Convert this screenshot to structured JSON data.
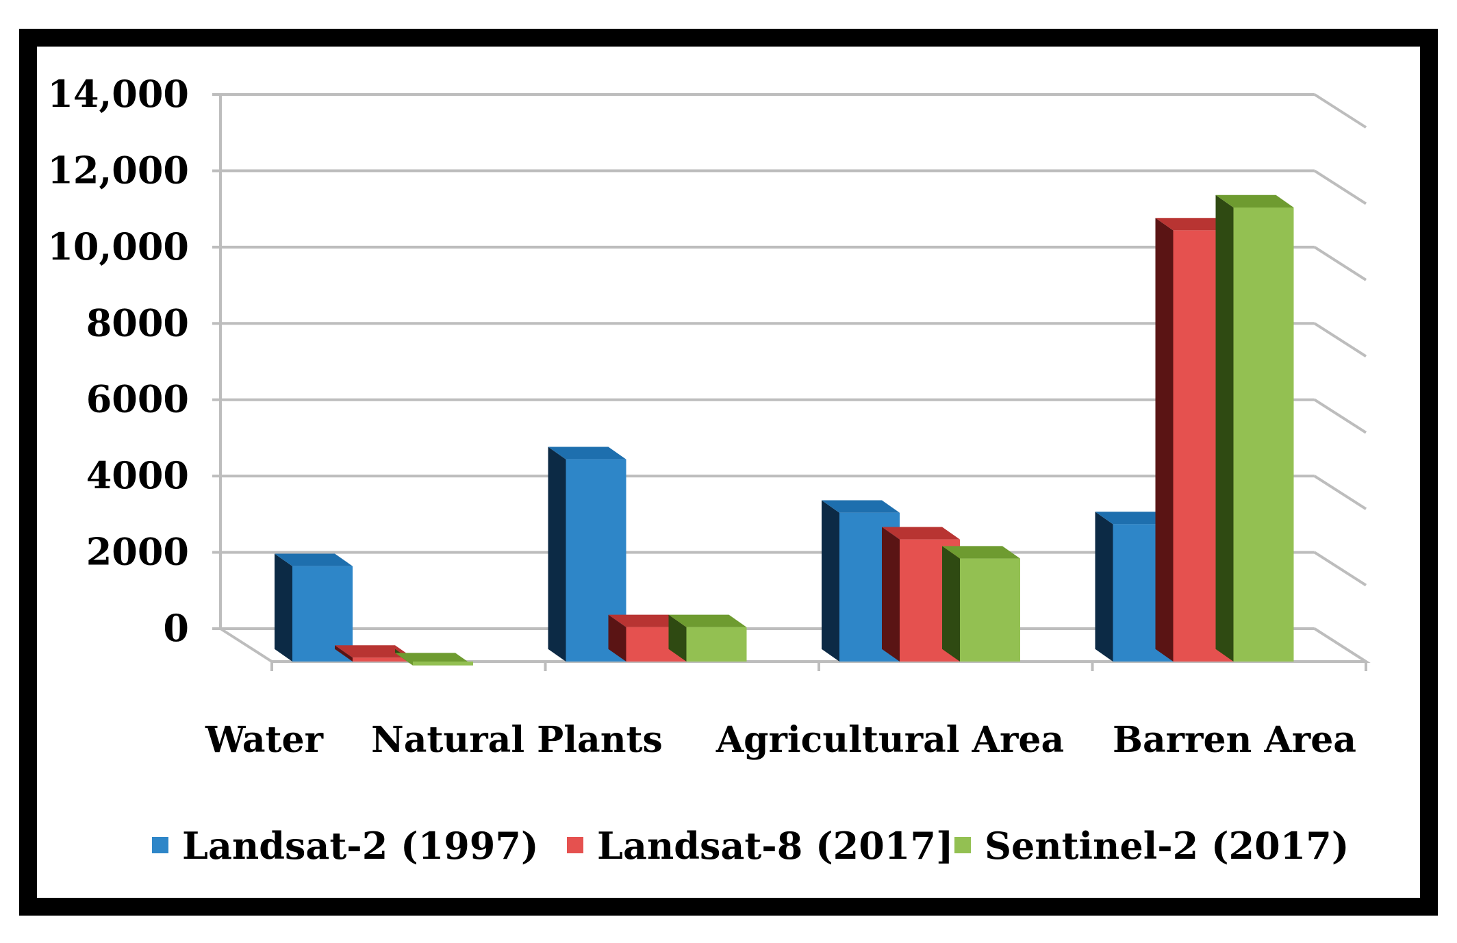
{
  "chart_data": {
    "type": "bar",
    "categories": [
      "Water",
      "Natural Plants",
      "Agricultural Area",
      "Barren Area"
    ],
    "series": [
      {
        "name": "Landsat-2 (1997)",
        "values": [
          2500,
          5300,
          3900,
          3600
        ],
        "color": "#2E86C8",
        "side": "#0C2A45",
        "top": "#1E6FAE"
      },
      {
        "name": "Landsat-8 (2017]",
        "values": [
          100,
          900,
          3200,
          11300
        ],
        "color": "#E5514F",
        "side": "#5A1414",
        "top": "#B83432"
      },
      {
        "name": "Sentinel-2 (2017)",
        "values": [
          -100,
          900,
          2700,
          11900
        ],
        "color": "#93C052",
        "side": "#2F4A12",
        "top": "#6E9B30"
      }
    ],
    "yticks": [
      "0",
      "2000",
      "4000",
      "6000",
      "8000",
      "10,000",
      "12,000",
      "14,000"
    ],
    "ylim": [
      0,
      14000
    ],
    "grid": true,
    "legend_position": "bottom",
    "style": "3d-clustered-column"
  }
}
